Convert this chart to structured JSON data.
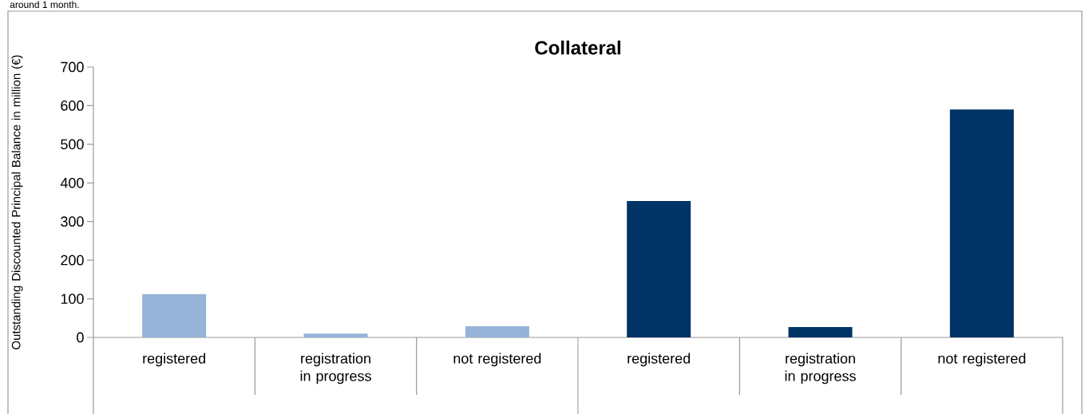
{
  "chart_data": {
    "type": "bar",
    "title": "Collateral",
    "ylabel": "Outstanding Discounted Principal Balance in million (€)",
    "categories": [
      "registered",
      "registration in progress",
      "not registered",
      "registered",
      "registration in progress",
      "not registered"
    ],
    "values": [
      112,
      10,
      29,
      353,
      27,
      590
    ],
    "colors": [
      "#95b3d7",
      "#95b3d7",
      "#95b3d7",
      "#003366",
      "#003366",
      "#003366"
    ],
    "ylim": [
      0,
      700
    ],
    "yticks": [
      0,
      100,
      200,
      300,
      400,
      500,
      600,
      700
    ],
    "annotations": [
      "around 1 month."
    ]
  }
}
